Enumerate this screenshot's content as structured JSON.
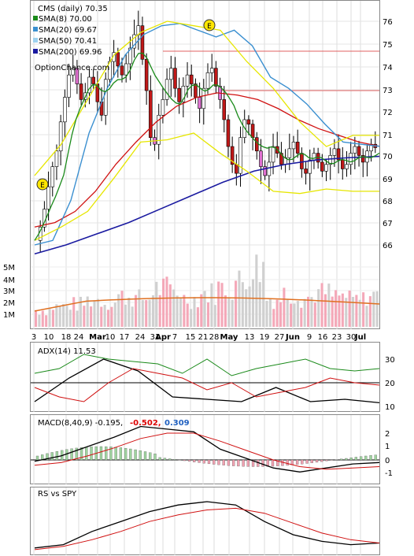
{
  "main_panel": {
    "title": "CMS (daily) 70.35",
    "legend": [
      {
        "label": "SMA(8) 70.00",
        "color": "#1a8a1a"
      },
      {
        "label": "SMA(20) 69.67",
        "color": "#3a8fd0"
      },
      {
        "label": "SMA(50) 70.41",
        "color": "#9ed2f0"
      },
      {
        "label": "SMA(200) 69.96",
        "color": "#1a1aa0"
      }
    ],
    "watermark": "OptionChance.com",
    "earnings_marker": "E",
    "y_ticks": [
      "76",
      "75",
      "74",
      "73",
      "72",
      "71",
      "70",
      "69",
      "68",
      "67",
      "66"
    ],
    "hlines": [
      75,
      73
    ]
  },
  "volume_panel": {
    "y_ticks": [
      "5M",
      "4M",
      "3M",
      "2M",
      "1M"
    ]
  },
  "x_axis": {
    "labels": [
      "3",
      "10",
      "18",
      "24",
      "Mar",
      "10",
      "17",
      "24",
      "31",
      "Apr",
      "7",
      "15",
      "21",
      "28",
      "May",
      "13",
      "19",
      "27",
      "Jun",
      "9",
      "16",
      "23",
      "30",
      "Jul"
    ]
  },
  "adx_panel": {
    "title": "ADX(14) 11.53",
    "y_ticks": [
      "30",
      "20",
      "10"
    ]
  },
  "macd_panel": {
    "title": "MACD(8,40,9) -0.195,",
    "value_red": "-0.502,",
    "value_blue": "0.309",
    "y_ticks": [
      "2",
      "1",
      "0",
      "-1"
    ]
  },
  "rs_panel": {
    "title": "RS vs SPY"
  },
  "chart_data": {
    "type": "candlestick",
    "ylim": [
      65.5,
      76.4
    ],
    "sma200": [
      65.6,
      66.0,
      66.5,
      67.0,
      67.6,
      68.2,
      68.8,
      69.3,
      69.6,
      69.8,
      69.9,
      69.96
    ],
    "sma50": [
      66.0,
      66.2,
      68.0,
      71.0,
      73.0,
      74.5,
      75.4,
      75.8,
      75.9,
      75.6,
      75.3,
      75.6,
      74.9,
      73.5,
      73.0,
      72.3,
      71.4,
      70.6,
      70.5,
      70.41
    ],
    "sma20_upper": [
      69.1,
      70.5,
      72.5,
      74.5,
      75.5,
      76.0,
      75.8,
      75.6,
      74.2,
      73.0,
      71.5,
      70.4,
      70.9,
      70.9
    ],
    "sma20_lower": [
      66.2,
      66.8,
      67.5,
      69.0,
      70.6,
      70.7,
      71.0,
      70.1,
      69.3,
      68.4,
      68.3,
      68.5,
      68.4,
      68.4
    ],
    "volume": [
      1.5,
      1.8,
      2.0,
      2.4,
      2.2,
      2.7,
      2.5,
      3.4,
      3.2,
      2.5,
      3.0,
      3.5,
      4.0,
      5.3,
      2.5,
      3.0,
      2.6,
      3.0,
      2.7,
      2.4,
      2.8
    ],
    "adx": [
      12,
      22,
      30,
      25,
      14,
      13,
      12,
      18,
      12,
      13,
      11.53
    ],
    "macd": [
      -0.1,
      0.3,
      1.0,
      1.7,
      2.5,
      2.3,
      2.1,
      0.8,
      0.1,
      -0.6,
      -0.9,
      -0.6,
      -0.3,
      -0.195
    ],
    "rs": [
      0.1,
      0.2,
      0.6,
      0.9,
      1.2,
      1.4,
      1.5,
      1.4,
      0.9,
      0.5,
      0.3,
      0.2,
      0.25
    ]
  }
}
